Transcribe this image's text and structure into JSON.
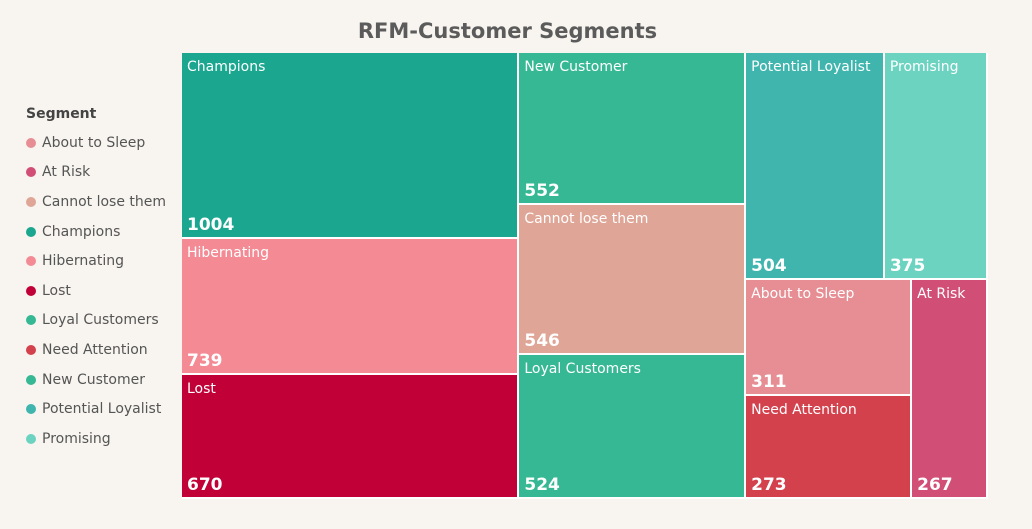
{
  "chart_data": {
    "type": "treemap",
    "title": "RFM-Customer Segments",
    "legend_title": "Segment",
    "legend": [
      {
        "name": "About to Sleep",
        "color": "#e68e93"
      },
      {
        "name": "At Risk",
        "color": "#d14f76"
      },
      {
        "name": "Cannot lose them",
        "color": "#dfa596"
      },
      {
        "name": "Champions",
        "color": "#1aa68f"
      },
      {
        "name": "Hibernating",
        "color": "#f38a94"
      },
      {
        "name": "Lost",
        "color": "#c00037"
      },
      {
        "name": "Loyal Customers",
        "color": "#36b894"
      },
      {
        "name": "Need Attention",
        "color": "#d3414d"
      },
      {
        "name": "New Customer",
        "color": "#36b894"
      },
      {
        "name": "Potential Loyalist",
        "color": "#3fb5ae"
      },
      {
        "name": "Promising",
        "color": "#6cd3c1"
      }
    ],
    "items": [
      {
        "name": "Champions",
        "value": 1004,
        "color": "#1aa68f"
      },
      {
        "name": "Hibernating",
        "value": 739,
        "color": "#f38a94"
      },
      {
        "name": "Lost",
        "value": 670,
        "color": "#c00037"
      },
      {
        "name": "New Customer",
        "value": 552,
        "color": "#36b894"
      },
      {
        "name": "Cannot lose them",
        "value": 546,
        "color": "#dfa596"
      },
      {
        "name": "Loyal Customers",
        "value": 524,
        "color": "#36b894"
      },
      {
        "name": "Potential Loyalist",
        "value": 504,
        "color": "#3fb5ae"
      },
      {
        "name": "Promising",
        "value": 375,
        "color": "#6cd3c1"
      },
      {
        "name": "About to Sleep",
        "value": 311,
        "color": "#e68e93"
      },
      {
        "name": "Need Attention",
        "value": 273,
        "color": "#d3414d"
      },
      {
        "name": "At Risk",
        "value": 267,
        "color": "#d14f76"
      }
    ]
  }
}
